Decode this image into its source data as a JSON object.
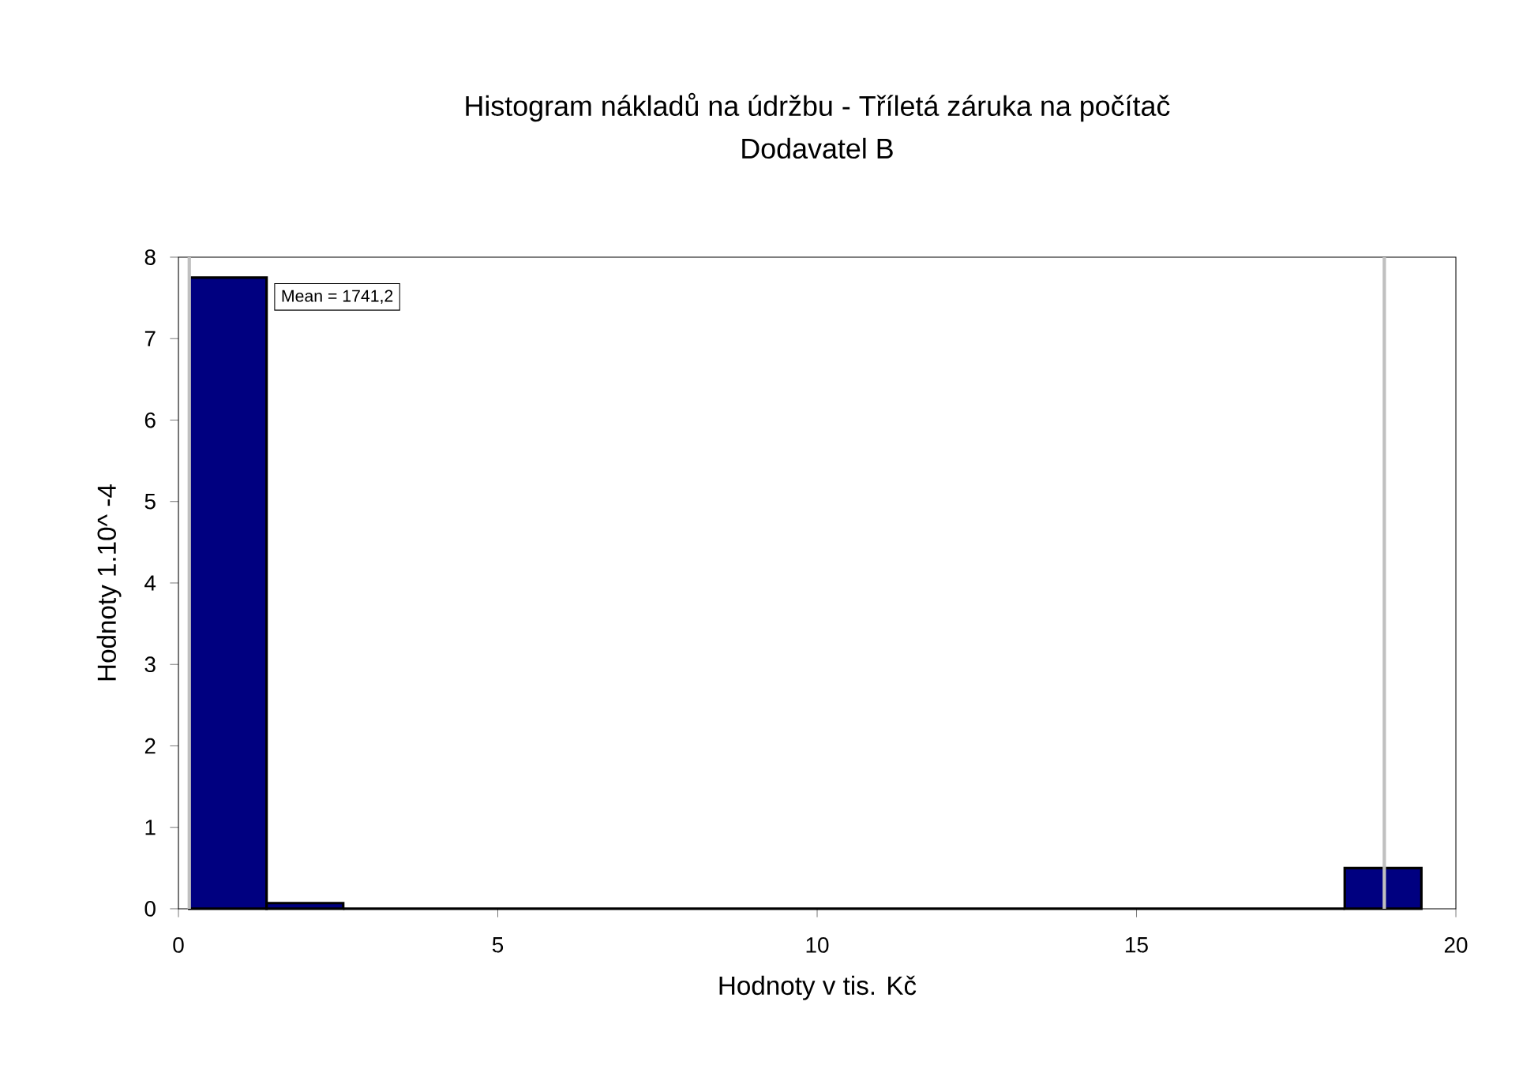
{
  "chart_data": {
    "type": "histogram",
    "title": "Histogram nákladů na údržbu - Tříletá záruka na počítač",
    "subtitle": "Dodavatel B",
    "xlabel": "Hodnoty v tis. Kč",
    "ylabel": "Hodnoty 1.10^ -4",
    "bins": [
      0.17,
      1.38,
      2.58,
      18.26,
      19.46
    ],
    "values": [
      7.75,
      0.07,
      0,
      0.5
    ],
    "color": "#000080",
    "xlim": [
      0,
      20
    ],
    "xticks": [
      0,
      5,
      10,
      15,
      20
    ],
    "ylim": [
      0,
      8
    ],
    "yticks": [
      0,
      1,
      2,
      3,
      4,
      5,
      6,
      7,
      8
    ],
    "ref_lines": [
      {
        "axis": "x",
        "value": 0.17,
        "color": "#c0c0c0"
      },
      {
        "axis": "x",
        "value": 18.88,
        "color": "#c0c0c0"
      }
    ],
    "annotations": [
      "Mean = 1741,2"
    ],
    "grid": false
  }
}
